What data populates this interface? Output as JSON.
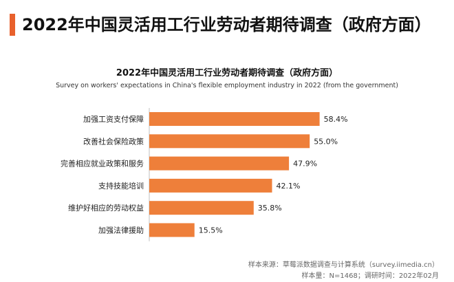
{
  "page_title": "2022年中国灵活用工行业劳动者期待调查（政府方面）",
  "footer": {
    "source": "样本来源：草莓派数据调查与计算系统（survey.iimedia.cn）",
    "sample": "样本量：N=1468；调研时间：2022年02月"
  },
  "colors": {
    "accent": "#e8612c",
    "bar": "#ee7f3a"
  },
  "chart_data": {
    "type": "bar",
    "orientation": "horizontal",
    "title": "2022年中国灵活用工行业劳动者期待调查（政府方面）",
    "subtitle": "Survey on workers' expectations in China's flexible employment industry in 2022 (from the government)",
    "categories": [
      "加强工资支付保障",
      "改善社会保险政策",
      "完善相应就业政策和服务",
      "支持技能培训",
      "维护好相应的劳动权益",
      "加强法律援助"
    ],
    "values": [
      58.4,
      55.0,
      47.9,
      42.1,
      35.8,
      15.5
    ],
    "value_labels": [
      "58.4%",
      "55.0%",
      "47.9%",
      "42.1%",
      "35.8%",
      "15.5%"
    ],
    "unit": "%",
    "xlabel": "",
    "ylabel": "",
    "xlim": [
      0,
      100
    ],
    "grid": false,
    "legend": "none"
  }
}
